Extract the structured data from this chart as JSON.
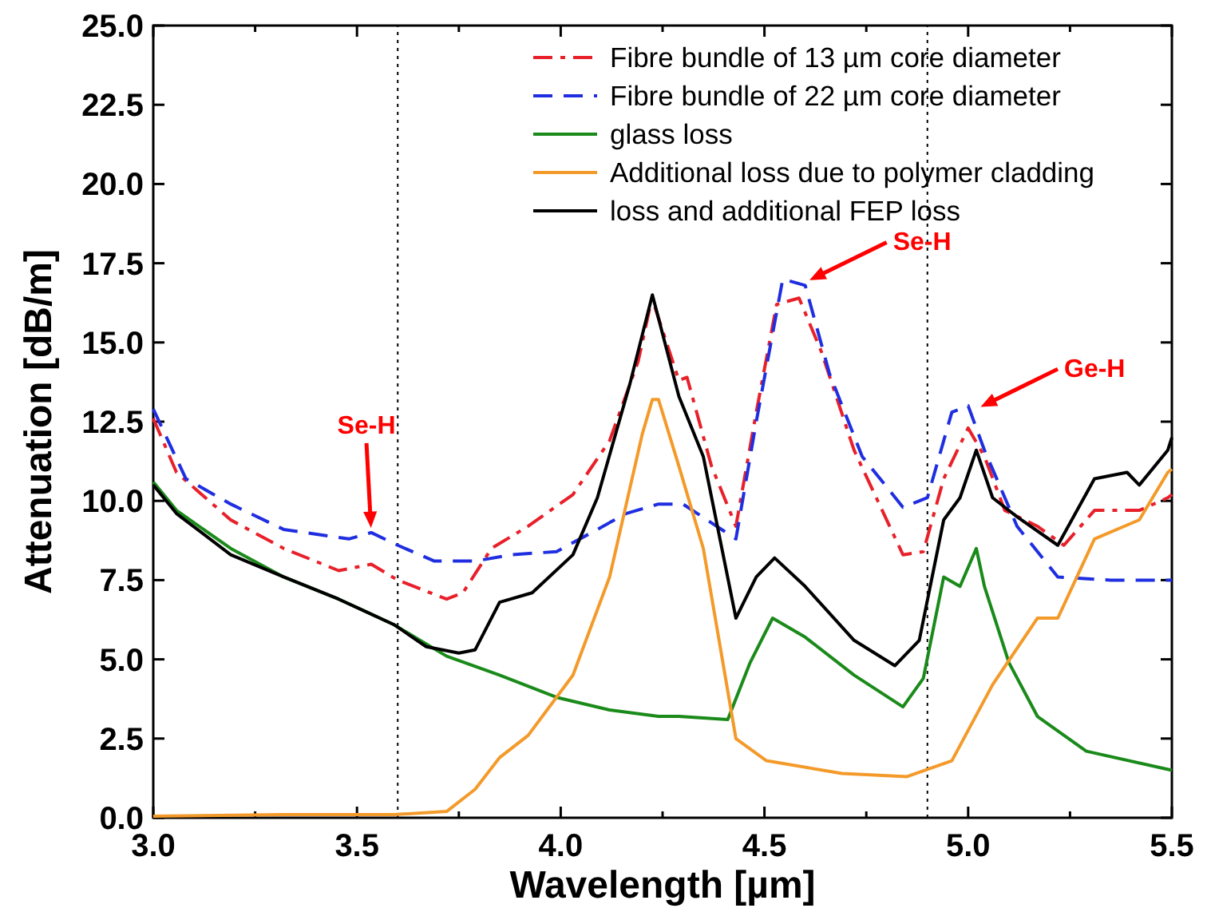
{
  "chart_data": {
    "type": "line",
    "xlabel": "Wavelength [µm]",
    "ylabel": "Attenuation [dB/m]",
    "xlim": [
      3.0,
      5.5
    ],
    "xticks": [
      {
        "value": 3,
        "label": "3.0"
      },
      {
        "value": 3.25,
        "label": null
      },
      3.5,
      {
        "value": 3.75,
        "label": null
      },
      {
        "value": 4,
        "label": "4.0"
      },
      {
        "value": 4.25,
        "label": null
      },
      4.5,
      {
        "value": 4.75,
        "label": null
      },
      {
        "value": 5,
        "label": "5.0"
      },
      {
        "value": 5.25,
        "label": null
      },
      5.5
    ],
    "ylim": [
      0,
      25
    ],
    "yticks": [
      {
        "value": 0,
        "label": "0.0"
      },
      2.5,
      {
        "value": 5,
        "label": "5.0"
      },
      7.5,
      {
        "value": 10,
        "label": "10.0"
      },
      12.5,
      {
        "value": 15,
        "label": "15.0"
      },
      17.5,
      {
        "value": 20,
        "label": "20.0"
      },
      22.5,
      {
        "value": 25,
        "label": "25.0"
      }
    ],
    "grid": false,
    "legend": "top right",
    "marker": "none",
    "series": [
      {
        "name": "Fibre bundle of 13 µm core diameter",
        "color": "#e8202a",
        "line_style": "dashdot",
        "x": [
          3.0,
          3.057,
          3.19,
          3.32,
          3.455,
          3.535,
          3.6,
          3.72,
          3.76,
          3.83,
          3.92,
          4.03,
          4.12,
          4.19,
          4.224,
          4.29,
          4.31,
          4.37,
          4.43,
          4.48,
          4.53,
          4.585,
          4.64,
          4.72,
          4.84,
          4.89,
          4.94,
          5.0,
          5.04,
          5.09,
          5.17,
          5.235,
          5.31,
          5.42,
          5.49,
          5.5
        ],
        "values": [
          12.6,
          10.9,
          9.4,
          8.5,
          7.8,
          8.0,
          7.5,
          6.9,
          7.1,
          8.5,
          9.2,
          10.2,
          11.9,
          14.4,
          16.4,
          13.8,
          13.9,
          11.1,
          9.2,
          12.8,
          16.2,
          16.4,
          14.7,
          11.6,
          8.3,
          8.4,
          10.7,
          12.3,
          11.4,
          9.7,
          9.2,
          8.6,
          9.7,
          9.7,
          10.1,
          10.2
        ]
      },
      {
        "name": "Fibre bundle of 22 µm core diameter",
        "color": "#1f2ee0",
        "line_style": "dashed",
        "x": [
          3.0,
          3.08,
          3.19,
          3.32,
          3.48,
          3.535,
          3.6,
          3.69,
          3.79,
          3.88,
          3.99,
          4.09,
          4.16,
          4.24,
          4.3,
          4.43,
          4.48,
          4.545,
          4.6,
          4.66,
          4.74,
          4.84,
          4.9,
          4.96,
          5.0,
          5.04,
          5.12,
          5.22,
          5.35,
          5.5
        ],
        "values": [
          12.9,
          10.7,
          9.9,
          9.1,
          8.8,
          9.0,
          8.6,
          8.1,
          8.1,
          8.3,
          8.4,
          9.1,
          9.6,
          9.9,
          9.9,
          8.8,
          12.5,
          17.0,
          16.8,
          14.0,
          11.4,
          9.8,
          10.1,
          12.8,
          13.0,
          11.6,
          9.2,
          7.6,
          7.5,
          7.5
        ]
      },
      {
        "name": "glass loss",
        "color": "#1a8a1a",
        "line_style": "solid",
        "x": [
          3.0,
          3.057,
          3.19,
          3.32,
          3.455,
          3.59,
          3.72,
          3.85,
          3.99,
          4.12,
          4.24,
          4.29,
          4.41,
          4.465,
          4.52,
          4.6,
          4.72,
          4.84,
          4.89,
          4.94,
          4.98,
          5.02,
          5.04,
          5.1,
          5.17,
          5.29,
          5.5
        ],
        "values": [
          10.6,
          9.7,
          8.5,
          7.6,
          6.9,
          6.1,
          5.1,
          4.5,
          3.8,
          3.4,
          3.2,
          3.2,
          3.1,
          4.9,
          6.3,
          5.7,
          4.5,
          3.5,
          4.4,
          7.6,
          7.3,
          8.5,
          7.3,
          4.9,
          3.2,
          2.1,
          1.5
        ]
      },
      {
        "name": "Additional loss due to polymer cladding",
        "color": "#f39a2a",
        "line_style": "solid",
        "x": [
          3.0,
          3.32,
          3.59,
          3.72,
          3.79,
          3.85,
          3.92,
          4.03,
          4.12,
          4.2,
          4.225,
          4.24,
          4.29,
          4.35,
          4.43,
          4.505,
          4.69,
          4.85,
          4.96,
          5.06,
          5.17,
          5.22,
          5.31,
          5.42,
          5.49,
          5.5
        ],
        "values": [
          0.05,
          0.1,
          0.1,
          0.2,
          0.9,
          1.9,
          2.6,
          4.5,
          7.6,
          12.1,
          13.2,
          13.2,
          11.1,
          8.5,
          2.5,
          1.8,
          1.4,
          1.3,
          1.8,
          4.2,
          6.3,
          6.3,
          8.8,
          9.4,
          10.9,
          11.0
        ]
      },
      {
        "name": "loss and additional FEP loss",
        "color": "#000000",
        "line_style": "solid",
        "x": [
          3.0,
          3.057,
          3.19,
          3.32,
          3.455,
          3.59,
          3.67,
          3.75,
          3.79,
          3.85,
          3.93,
          4.03,
          4.09,
          4.17,
          4.225,
          4.29,
          4.35,
          4.43,
          4.48,
          4.525,
          4.6,
          4.72,
          4.82,
          4.88,
          4.94,
          4.98,
          5.02,
          5.06,
          5.12,
          5.22,
          5.31,
          5.39,
          5.42,
          5.49,
          5.5
        ],
        "values": [
          10.5,
          9.6,
          8.3,
          7.6,
          6.9,
          6.1,
          5.4,
          5.2,
          5.3,
          6.8,
          7.1,
          8.3,
          10.1,
          13.7,
          16.5,
          13.3,
          11.4,
          6.3,
          7.6,
          8.2,
          7.3,
          5.6,
          4.8,
          5.6,
          9.4,
          10.1,
          11.6,
          10.1,
          9.5,
          8.6,
          10.7,
          10.9,
          10.5,
          11.6,
          12.0
        ]
      }
    ],
    "ref_lines": [
      {
        "axis": "x",
        "value": 3.6,
        "color": "#000000",
        "line_style": "dotted"
      },
      {
        "axis": "x",
        "value": 4.9,
        "color": "#000000",
        "line_style": "dotted"
      }
    ],
    "annotations": [
      {
        "text": "Se-H",
        "x": 3.535,
        "y": 9.0
      },
      {
        "text": "Se-H",
        "x": 4.6,
        "y": 16.9
      },
      {
        "text": "Ge-H",
        "x": 5.02,
        "y": 12.9
      }
    ]
  }
}
